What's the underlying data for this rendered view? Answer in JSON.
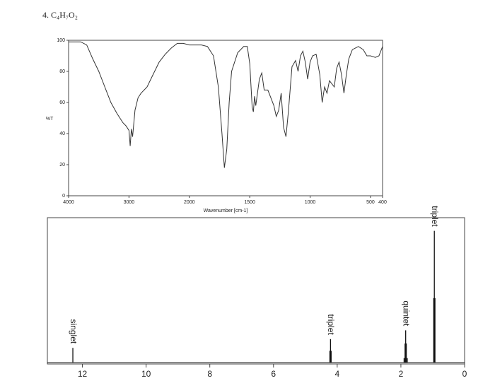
{
  "heading": "4. C₄H₇O₂",
  "chart_data": [
    {
      "type": "line",
      "x_label": "Wavenumber [cm-1]",
      "y_label": "%T",
      "xlim": [
        4000,
        400
      ],
      "x_break": 2000,
      "xticks": [
        4000,
        3000,
        2000,
        1500,
        1000,
        500,
        400
      ],
      "ylim": [
        0,
        100
      ],
      "yticks": [
        0,
        20,
        40,
        60,
        80,
        100
      ],
      "color": "#333333",
      "x": [
        4000,
        3900,
        3800,
        3700,
        3600,
        3500,
        3400,
        3300,
        3200,
        3100,
        3050,
        3000,
        2980,
        2960,
        2940,
        2900,
        2850,
        2800,
        2700,
        2600,
        2500,
        2400,
        2300,
        2200,
        2100,
        2000,
        1900,
        1850,
        1800,
        1760,
        1730,
        1710,
        1690,
        1670,
        1650,
        1600,
        1550,
        1520,
        1500,
        1480,
        1470,
        1460,
        1450,
        1420,
        1400,
        1380,
        1350,
        1300,
        1280,
        1260,
        1240,
        1220,
        1200,
        1180,
        1150,
        1120,
        1100,
        1080,
        1060,
        1040,
        1020,
        1000,
        980,
        950,
        920,
        900,
        880,
        860,
        840,
        800,
        780,
        760,
        740,
        720,
        700,
        680,
        650,
        600,
        560,
        530,
        500,
        460,
        430,
        400
      ],
      "values": [
        99,
        99,
        99,
        97,
        88,
        80,
        70,
        60,
        53,
        47,
        45,
        42,
        32,
        43,
        38,
        55,
        63,
        66,
        70,
        78,
        86,
        91,
        95,
        98,
        98,
        97,
        97,
        96,
        90,
        70,
        40,
        18,
        30,
        60,
        80,
        92,
        96,
        96,
        85,
        57,
        54,
        64,
        58,
        75,
        79,
        68,
        68,
        58,
        51,
        55,
        66,
        44,
        38,
        54,
        83,
        87,
        80,
        90,
        93,
        86,
        75,
        86,
        90,
        91,
        78,
        60,
        70,
        66,
        74,
        70,
        82,
        86,
        78,
        66,
        78,
        88,
        94,
        96,
        94,
        90,
        90,
        89,
        90,
        96
      ]
    },
    {
      "type": "stem",
      "xlim": [
        13.1,
        0
      ],
      "xticks": [
        12,
        10,
        8,
        6,
        4,
        2,
        0
      ],
      "ylim": [
        0,
        100
      ],
      "color": "#111111",
      "x": [
        12.3,
        4.23,
        4.21,
        4.19,
        1.9,
        1.87,
        1.85,
        1.83,
        1.8,
        0.97,
        0.95,
        0.93
      ],
      "values": [
        11,
        9,
        17,
        9,
        4,
        14,
        23,
        14,
        4,
        45,
        91,
        45
      ],
      "annotations": [
        {
          "text": "singlet",
          "x": 12.3,
          "y": 11
        },
        {
          "text": "triplet",
          "x": 4.21,
          "y": 17
        },
        {
          "text": "quintet",
          "x": 1.85,
          "y": 23
        },
        {
          "text": "triplet",
          "x": 0.95,
          "y": 91
        }
      ]
    }
  ]
}
